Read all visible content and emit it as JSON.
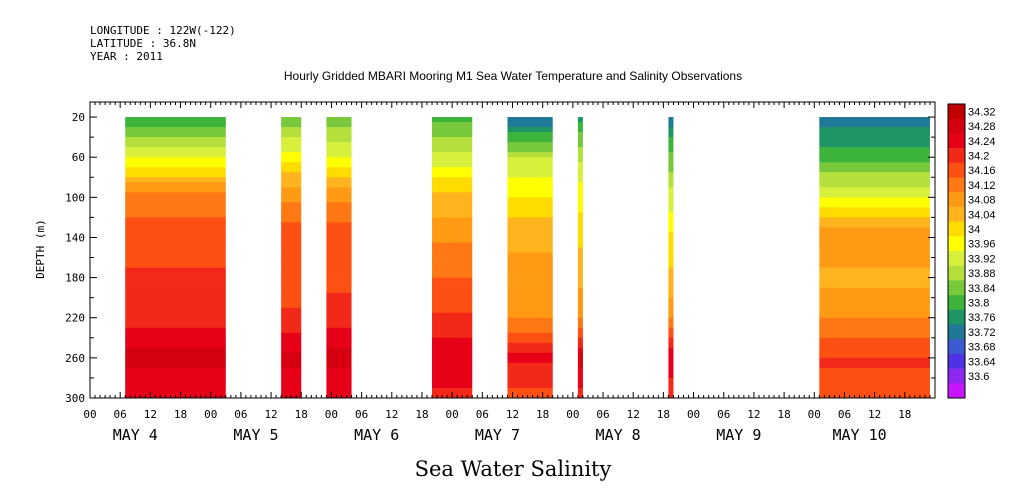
{
  "header": {
    "longitude": "LONGITUDE : 122W(-122)",
    "latitude": "LATITUDE : 36.8N",
    "year": "YEAR : 2011"
  },
  "chart_data": {
    "type": "heatmap",
    "title": "Hourly Gridded MBARI Mooring M1 Sea Water Temperature and Salinity Observations",
    "xlabel": "Sea Water Salinity",
    "ylabel": "DEPTH (m)",
    "ylim": [
      300,
      5
    ],
    "y_ticks": [
      "20",
      "60",
      "100",
      "140",
      "180",
      "220",
      "260",
      "300"
    ],
    "x_hour_ticks": [
      "00",
      "06",
      "12",
      "18",
      "00",
      "06",
      "12",
      "18",
      "00",
      "06",
      "12",
      "18",
      "00",
      "06",
      "12",
      "18",
      "00",
      "06",
      "12",
      "18",
      "00",
      "06",
      "12",
      "18",
      "00",
      "06",
      "12",
      "18"
    ],
    "x_day_labels": [
      "MAY  4",
      "MAY  5",
      "MAY  6",
      "MAY  7",
      "MAY  8",
      "MAY  9",
      "MAY 10"
    ],
    "colorbar": {
      "labels": [
        "34.32",
        "34.28",
        "34.24",
        "34.2",
        "34.16",
        "34.12",
        "34.08",
        "34.04",
        "34",
        "33.96",
        "33.92",
        "33.88",
        "33.84",
        "33.8",
        "33.76",
        "33.72",
        "33.68",
        "33.64",
        "33.6"
      ],
      "colors": [
        "#c00000",
        "#d50010",
        "#e60018",
        "#f22818",
        "#ff5014",
        "#ff7814",
        "#ff9a14",
        "#ffb41e",
        "#ffdc00",
        "#ffff00",
        "#d8f03c",
        "#b4e03c",
        "#78c83c",
        "#3cb43c",
        "#1e9664",
        "#1e7896",
        "#3c5ad2",
        "#5032e6",
        "#8c28f0",
        "#c814ff"
      ]
    },
    "depth_levels": [
      20,
      60,
      100,
      140,
      180,
      220,
      260,
      300
    ],
    "x_start": "2011-05-04 00:00",
    "segments": [
      {
        "start": "2011-05-04 07:00",
        "end": "2011-05-05 03:00",
        "profile": [
          33.82,
          33.96,
          34.12,
          34.16,
          34.18,
          34.2,
          34.26,
          34.22
        ]
      },
      {
        "start": "2011-05-05 14:00",
        "end": "2011-05-05 18:00",
        "profile": [
          33.86,
          33.98,
          34.1,
          34.16,
          34.16,
          34.18,
          34.26,
          34.22
        ]
      },
      {
        "start": "2011-05-05 23:00",
        "end": "2011-05-06 04:00",
        "profile": [
          33.86,
          33.96,
          34.1,
          34.16,
          34.16,
          34.2,
          34.26,
          34.22
        ]
      },
      {
        "start": "2011-05-06 20:00",
        "end": "2011-05-07 04:00",
        "profile": [
          33.84,
          33.94,
          34.04,
          34.1,
          34.14,
          34.18,
          34.24,
          34.2
        ]
      },
      {
        "start": "2011-05-07 11:00",
        "end": "2011-05-07 20:00",
        "profile": [
          33.74,
          33.92,
          34.0,
          34.06,
          34.08,
          34.1,
          34.22,
          34.16
        ]
      },
      {
        "start": "2011-05-08 01:00",
        "end": "2011-05-08 02:00",
        "profile": [
          33.8,
          33.92,
          33.98,
          34.02,
          34.06,
          34.1,
          34.26,
          34.2
        ]
      },
      {
        "start": "2011-05-08 19:00",
        "end": "2011-05-08 20:00",
        "profile": [
          33.76,
          33.86,
          33.94,
          34.0,
          34.04,
          34.1,
          34.24,
          34.18
        ]
      },
      {
        "start": "2011-05-10 01:00",
        "end": "2011-05-10 23:00",
        "profile": [
          33.76,
          33.84,
          33.96,
          34.1,
          34.06,
          34.1,
          34.18,
          34.16
        ]
      }
    ]
  }
}
